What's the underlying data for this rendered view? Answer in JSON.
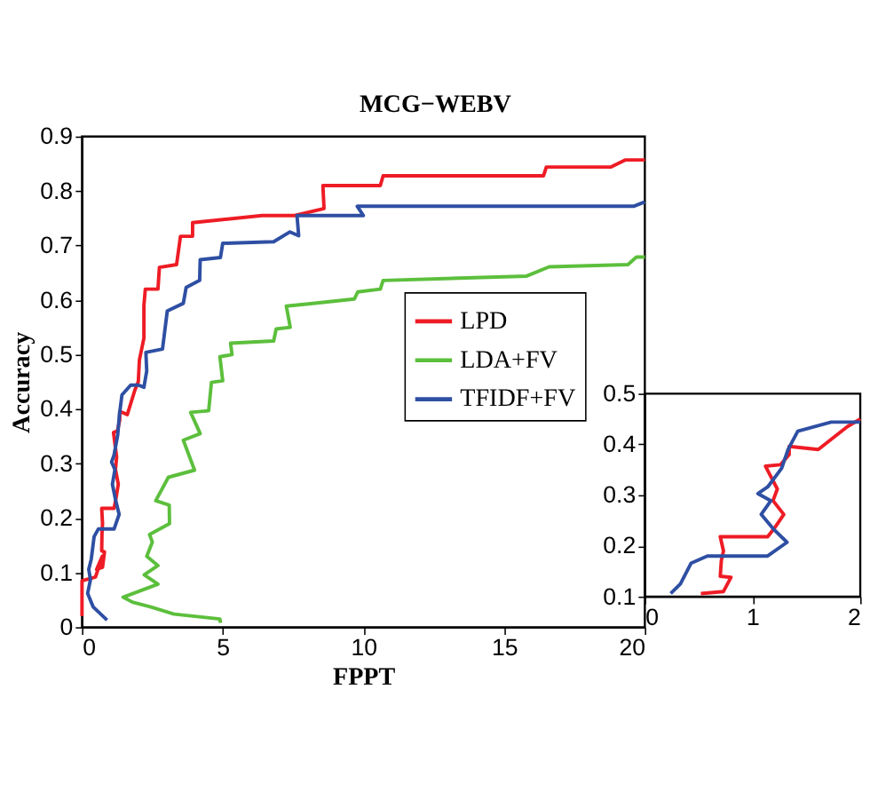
{
  "chart_data": [
    {
      "type": "line",
      "title": "MCG−WEBV",
      "xlabel": "FPPT",
      "ylabel": "Accuracy",
      "xlim": [
        0,
        20
      ],
      "ylim": [
        0,
        0.9
      ],
      "xticks": [
        0,
        5,
        10,
        15,
        20
      ],
      "yticks": [
        0,
        0.1,
        0.2,
        0.3,
        0.4,
        0.5,
        0.6,
        0.7,
        0.8,
        0.9
      ],
      "grid": false,
      "legend": "right",
      "line_style": "solid",
      "marker": "none",
      "series": [
        {
          "name": "LPD",
          "color": "#ee1c25",
          "x": [
            0,
            0,
            0.48,
            0.72,
            0.52,
            0.73,
            0.8,
            0.7,
            0.71,
            0.73,
            0.7,
            1.14,
            1.2,
            1.29,
            1.19,
            1.23,
            1.12,
            1.26,
            1.34,
            1.34,
            1.61,
            1.88,
            2.0,
            2.04,
            2.12,
            2.2,
            2.2,
            2.25,
            2.7,
            2.75,
            3.36,
            3.5,
            3.93,
            3.93,
            6.4,
            7.56,
            8.6,
            8.56,
            10.6,
            10.7,
            16.4,
            16.5,
            18.8,
            19.3,
            20
          ],
          "values": [
            0.02,
            0.085,
            0.092,
            0.13,
            0.106,
            0.11,
            0.138,
            0.14,
            0.171,
            0.19,
            0.218,
            0.218,
            0.234,
            0.262,
            0.289,
            0.312,
            0.357,
            0.36,
            0.38,
            0.396,
            0.39,
            0.435,
            0.45,
            0.49,
            0.51,
            0.53,
            0.59,
            0.62,
            0.62,
            0.66,
            0.665,
            0.717,
            0.717,
            0.742,
            0.755,
            0.755,
            0.768,
            0.81,
            0.81,
            0.828,
            0.828,
            0.844,
            0.844,
            0.857,
            0.857
          ]
        },
        {
          "name": "LDA+FV",
          "color": "#5cbf3c",
          "x": [
            4.92,
            4.9,
            3.27,
            2.45,
            1.79,
            1.46,
            2.7,
            2.21,
            2.7,
            2.3,
            2.5,
            2.4,
            3.11,
            3.1,
            2.62,
            3.07,
            4.0,
            3.6,
            4.2,
            3.86,
            4.5,
            4.6,
            5.0,
            4.9,
            5.33,
            5.28,
            6.81,
            6.9,
            7.4,
            7.26,
            8.05,
            9.68,
            9.8,
            10.6,
            10.7,
            15.8,
            16.6,
            19.4,
            19.7,
            20
          ],
          "values": [
            0.008,
            0.015,
            0.024,
            0.037,
            0.046,
            0.055,
            0.079,
            0.096,
            0.113,
            0.13,
            0.156,
            0.17,
            0.19,
            0.224,
            0.232,
            0.275,
            0.288,
            0.343,
            0.355,
            0.394,
            0.397,
            0.449,
            0.452,
            0.496,
            0.5,
            0.521,
            0.525,
            0.547,
            0.55,
            0.589,
            0.593,
            0.602,
            0.615,
            0.62,
            0.636,
            0.644,
            0.661,
            0.665,
            0.679,
            0.679
          ]
        },
        {
          "name": "TFIDF+FV",
          "color": "#2e4fa3",
          "x": [
            0.89,
            0.4,
            0.2,
            0.3,
            0.24,
            0.33,
            0.43,
            0.58,
            1.14,
            1.32,
            1.19,
            1.08,
            1.17,
            1.05,
            1.14,
            1.27,
            1.33,
            1.42,
            1.73,
            2.01,
            2.2,
            2.3,
            2.27,
            2.86,
            3.03,
            3.6,
            3.7,
            4.18,
            4.2,
            4.92,
            5.0,
            6.81,
            7.39,
            7.7,
            7.64,
            10.0,
            9.78,
            19.6,
            20
          ],
          "values": [
            0.013,
            0.037,
            0.062,
            0.087,
            0.106,
            0.125,
            0.166,
            0.18,
            0.18,
            0.207,
            0.234,
            0.262,
            0.289,
            0.303,
            0.316,
            0.353,
            0.39,
            0.426,
            0.444,
            0.444,
            0.44,
            0.47,
            0.504,
            0.51,
            0.58,
            0.594,
            0.623,
            0.636,
            0.674,
            0.678,
            0.704,
            0.707,
            0.725,
            0.718,
            0.755,
            0.755,
            0.772,
            0.772,
            0.78
          ]
        }
      ]
    },
    {
      "type": "line",
      "xlim": [
        0,
        2
      ],
      "ylim": [
        0.1,
        0.5
      ],
      "xticks": [
        0,
        1,
        2
      ],
      "yticks": [
        0.1,
        0.2,
        0.3,
        0.4,
        0.5
      ],
      "grid": false,
      "legend": false,
      "line_style": "solid",
      "marker": "none",
      "series": [
        {
          "color": "#ee1c25",
          "x": [
            0.52,
            0.73,
            0.8,
            0.7,
            0.71,
            0.73,
            0.7,
            1.14,
            1.2,
            1.29,
            1.19,
            1.23,
            1.12,
            1.26,
            1.34,
            1.34,
            1.61,
            1.88,
            2.0
          ],
          "values": [
            0.106,
            0.11,
            0.138,
            0.14,
            0.171,
            0.19,
            0.218,
            0.218,
            0.234,
            0.262,
            0.289,
            0.312,
            0.357,
            0.36,
            0.38,
            0.396,
            0.39,
            0.435,
            0.45
          ]
        },
        {
          "color": "#2e4fa3",
          "x": [
            0.24,
            0.33,
            0.43,
            0.58,
            1.14,
            1.32,
            1.19,
            1.08,
            1.17,
            1.05,
            1.14,
            1.27,
            1.33,
            1.42,
            1.73,
            2.0
          ],
          "values": [
            0.106,
            0.125,
            0.166,
            0.18,
            0.18,
            0.207,
            0.234,
            0.262,
            0.289,
            0.303,
            0.316,
            0.353,
            0.39,
            0.426,
            0.444,
            0.444
          ]
        }
      ]
    }
  ]
}
